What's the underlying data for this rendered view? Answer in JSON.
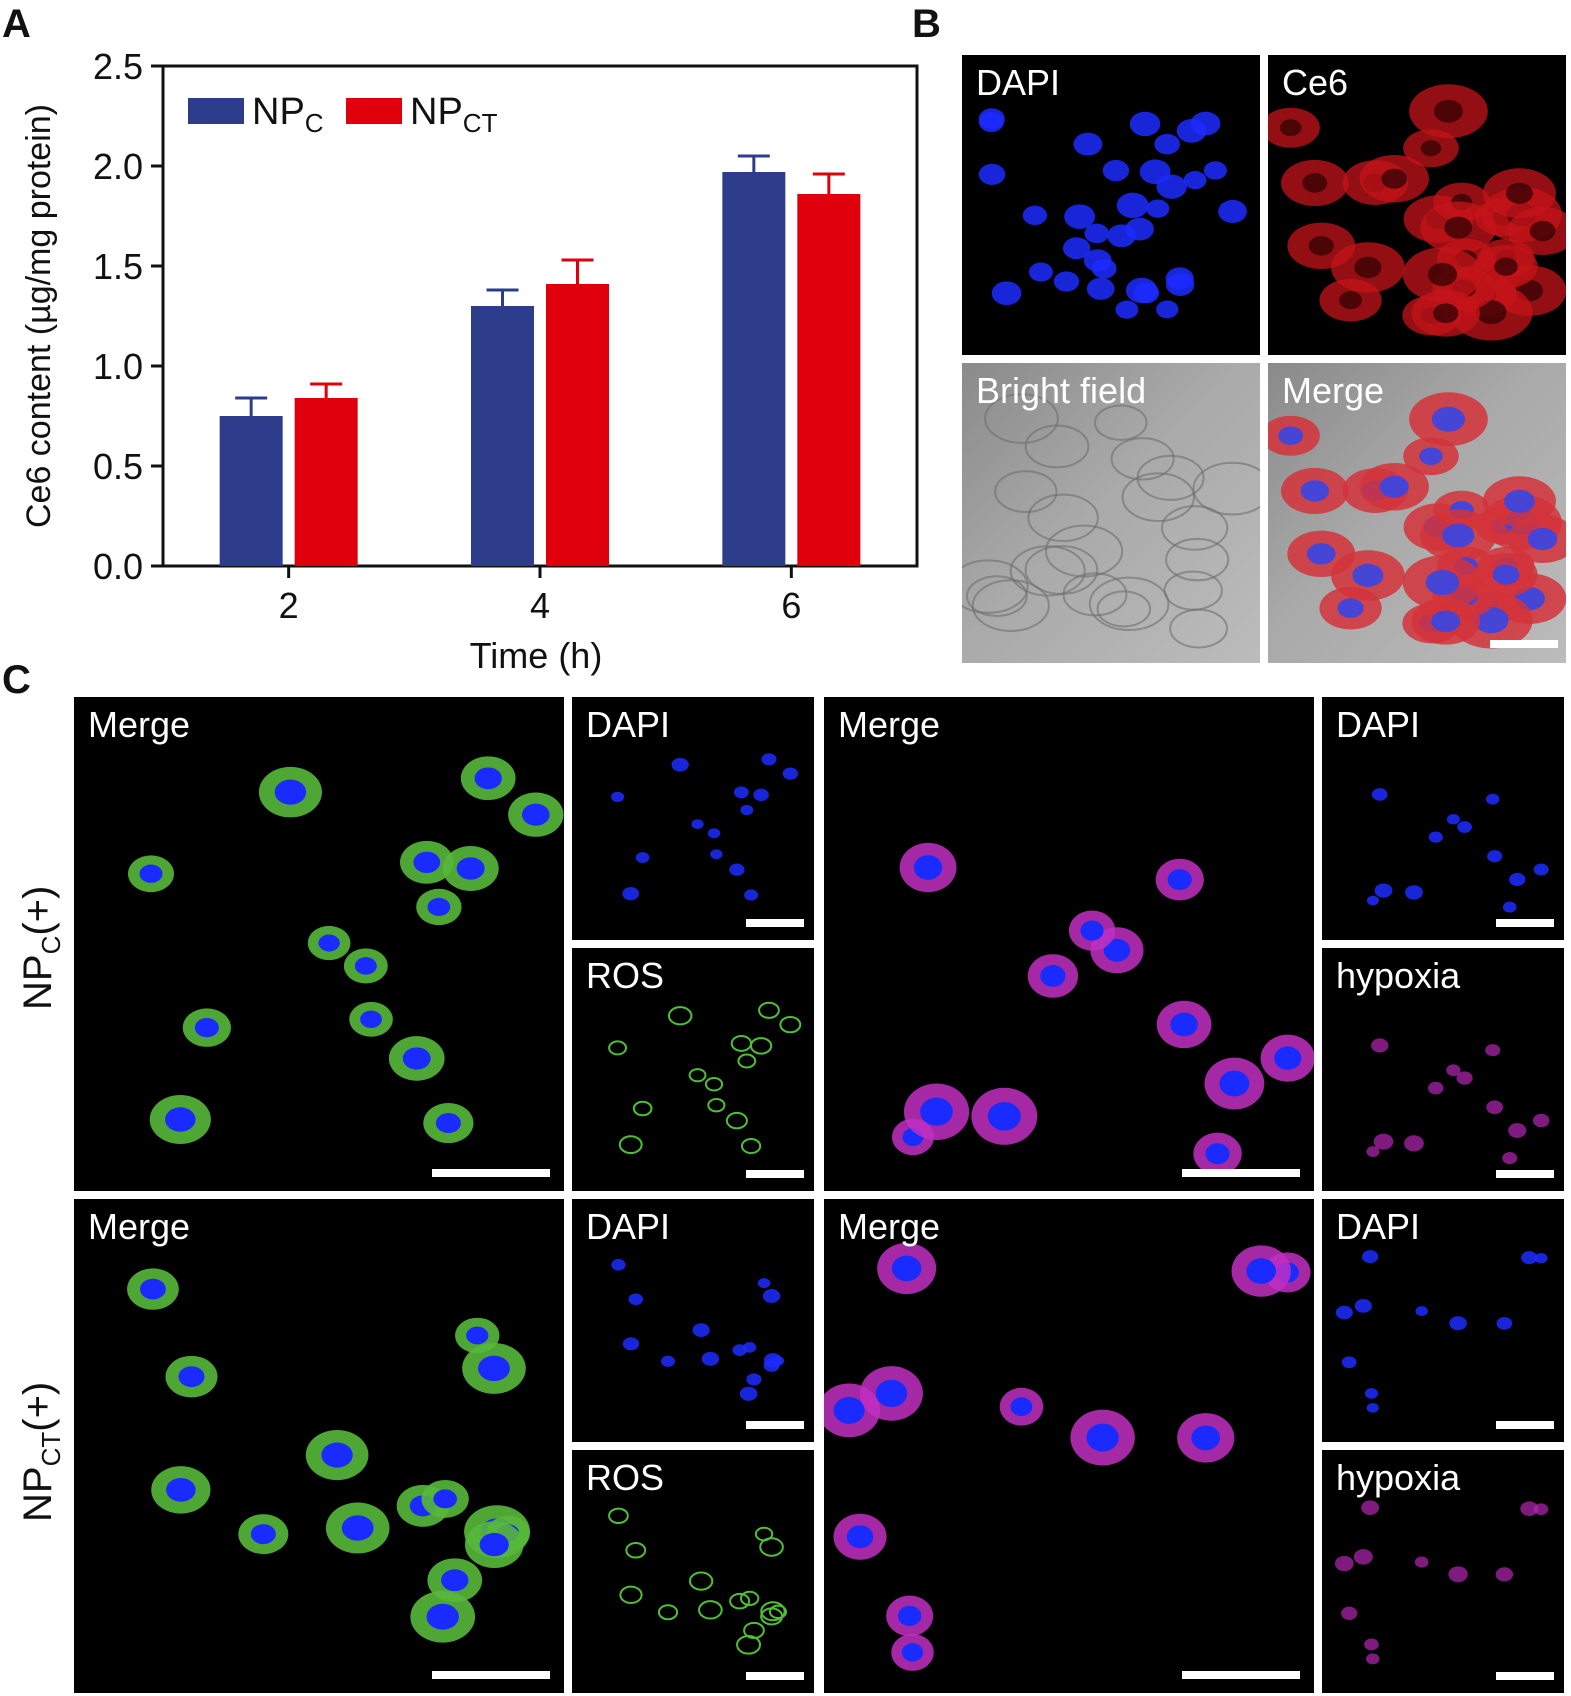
{
  "figure": {
    "panel_letters": [
      "A",
      "B",
      "C"
    ],
    "panel_b": {
      "labels": [
        "DAPI",
        "Ce6",
        "Bright field",
        "Merge"
      ]
    },
    "panel_c": {
      "rows": [
        {
          "label_main": "NP",
          "label_sub": "C",
          "label_tail": "(+)"
        },
        {
          "label_main": "NP",
          "label_sub": "CT",
          "label_tail": "(+)"
        }
      ],
      "labels": {
        "merge": "Merge",
        "dapi": "DAPI",
        "ros": "ROS",
        "hypoxia": "hypoxia"
      }
    }
  },
  "chart_data": {
    "type": "bar",
    "categories": [
      "2",
      "4",
      "6"
    ],
    "series": [
      {
        "name_main": "NP",
        "name_sub": "C",
        "values": [
          0.75,
          1.3,
          1.97
        ],
        "errors": [
          0.09,
          0.08,
          0.08
        ],
        "color": "#2d3d8c"
      },
      {
        "name_main": "NP",
        "name_sub": "CT",
        "values": [
          0.84,
          1.41,
          1.86
        ],
        "errors": [
          0.07,
          0.12,
          0.1
        ],
        "color": "#e0000b"
      }
    ],
    "xlabel": "Time (h)",
    "ylabel": "Ce6 content (µg/mg protein)",
    "ylim": [
      0,
      2.5
    ],
    "yticks": [
      "0.0",
      "0.5",
      "1.0",
      "1.5",
      "2.0",
      "2.5"
    ],
    "legend_position": "top-left",
    "grid": false
  }
}
